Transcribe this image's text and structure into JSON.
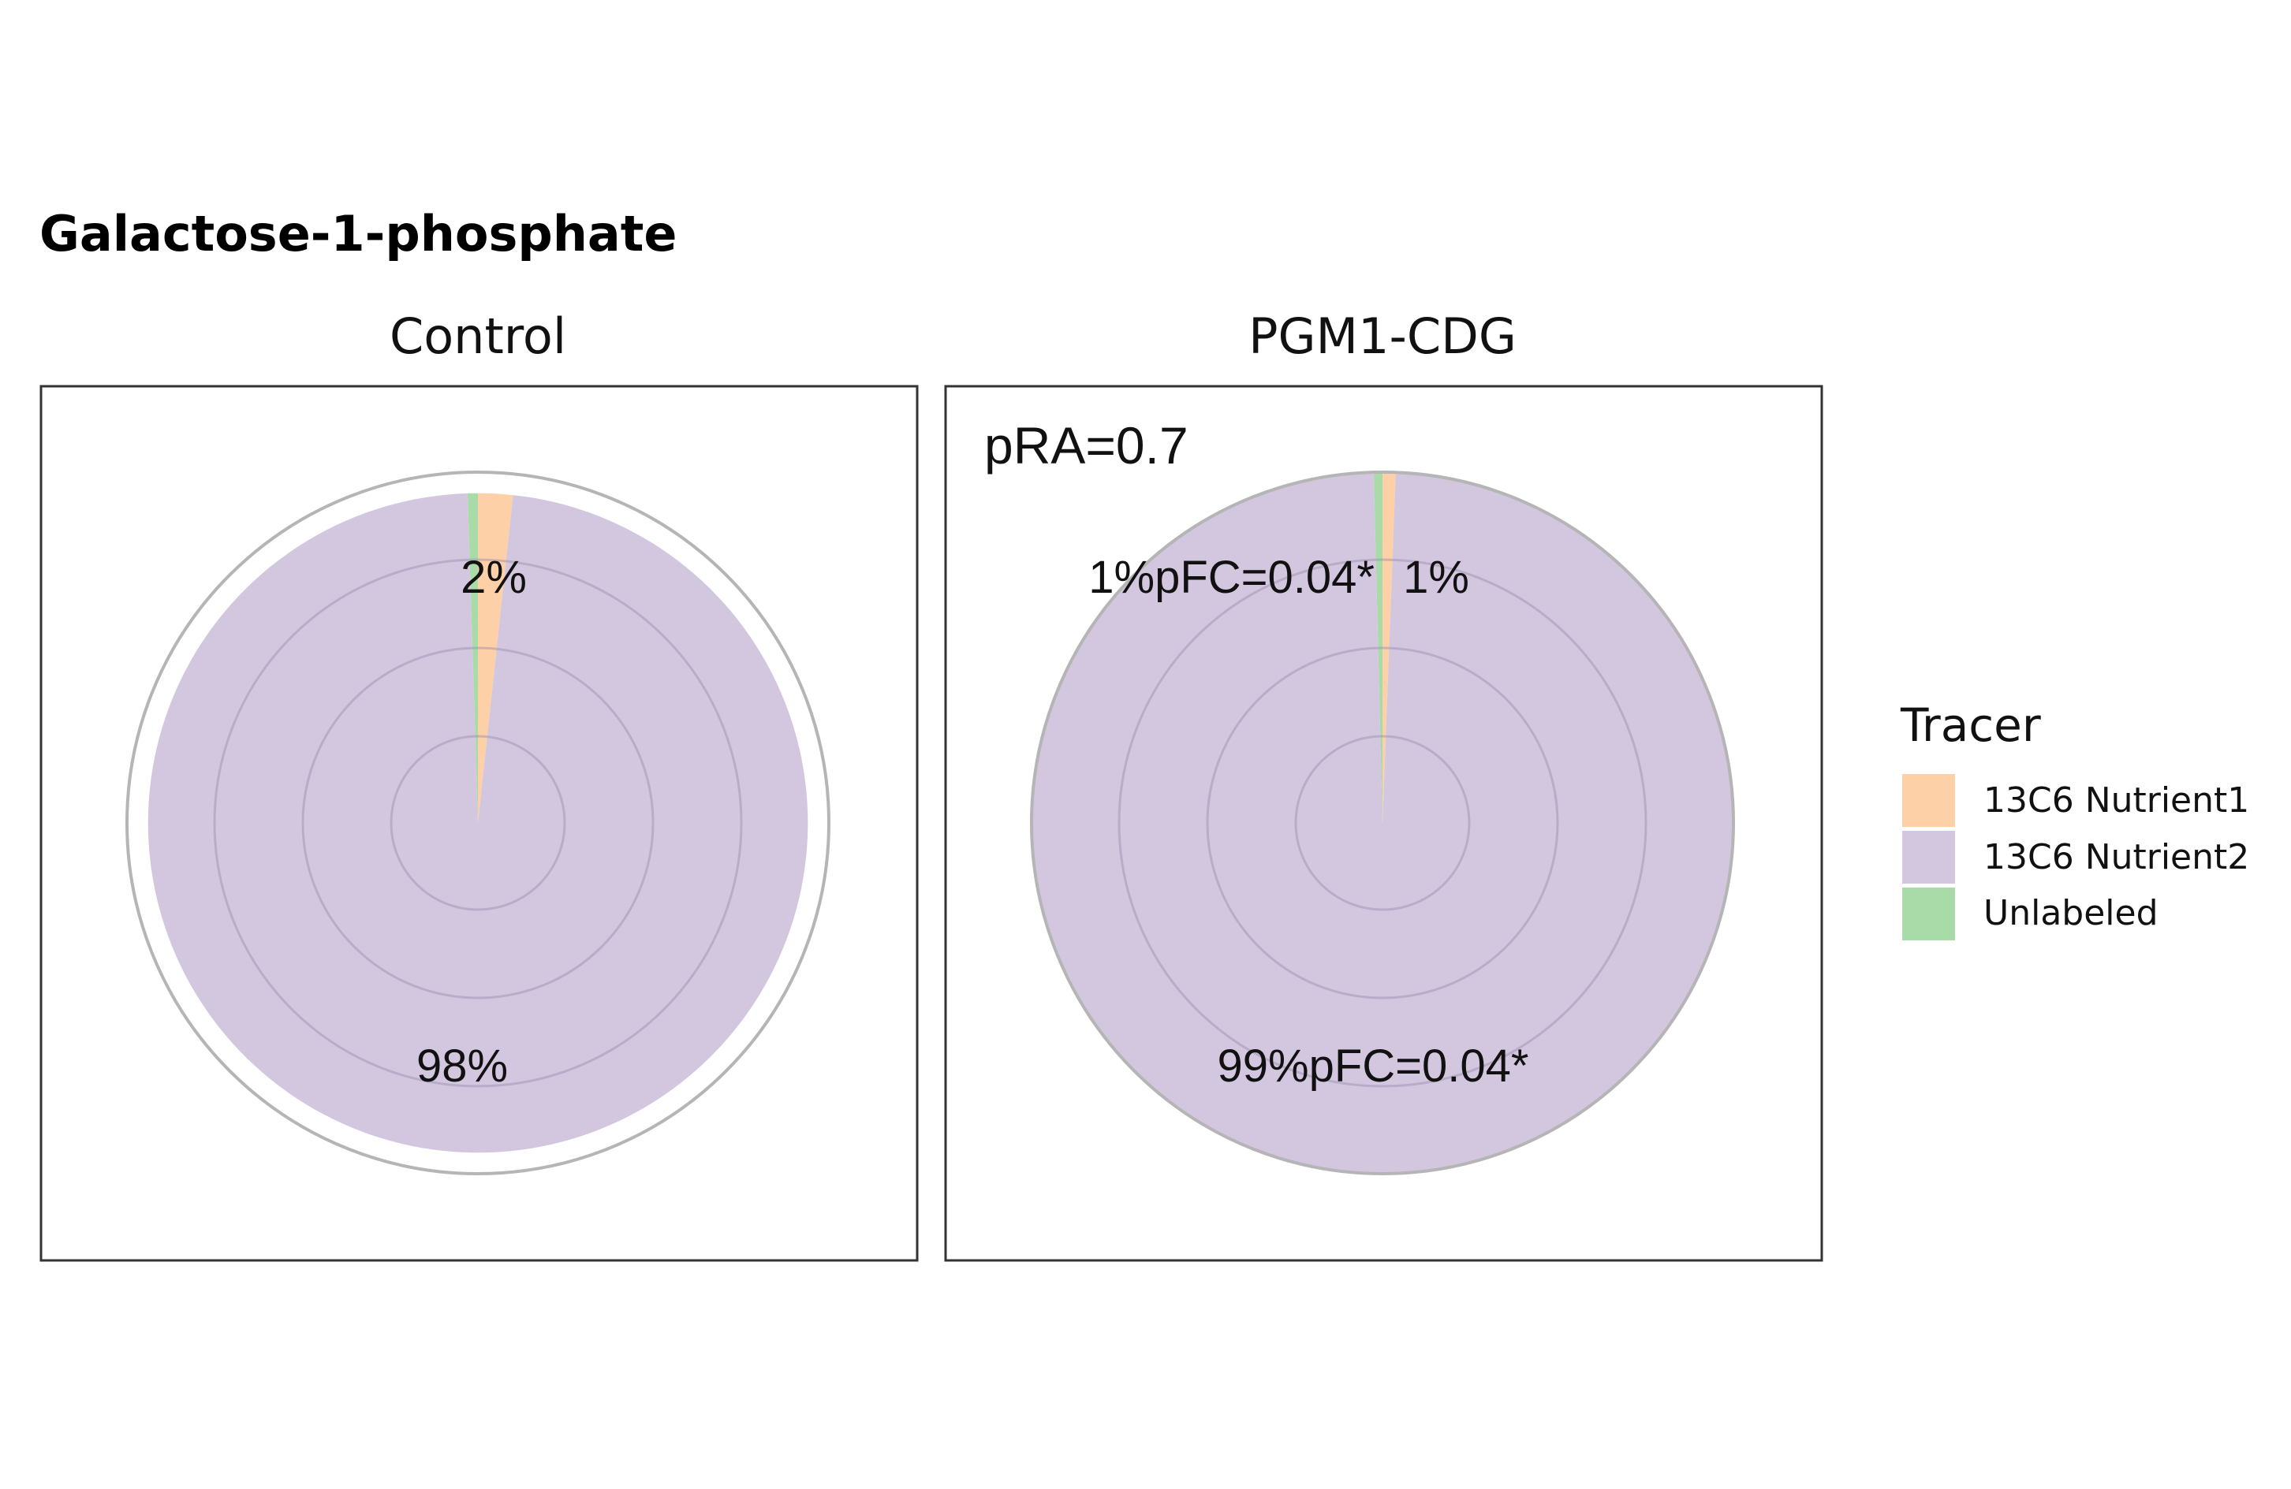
{
  "chart_data": {
    "type": "pie",
    "title": "Galactose-1-phosphate",
    "legend": {
      "title": "Tracer",
      "placement": "right",
      "items": [
        {
          "label": "13C6 Nutrient1",
          "color": "#fdd0a8"
        },
        {
          "label": "13C6 Nutrient2",
          "color": "#d3c7e0"
        },
        {
          "label": "Unlabeled",
          "color": "#a9dba9"
        }
      ]
    },
    "panels": [
      {
        "title": "Control",
        "annotation": "",
        "total_fraction": 0.94,
        "slices": [
          {
            "tracer": "13C6 Nutrient1",
            "value": 0.017
          },
          {
            "tracer": "13C6 Nutrient2",
            "value": 0.978
          },
          {
            "tracer": "Unlabeled",
            "value": 0.005
          }
        ],
        "labels": [
          {
            "text": "2%",
            "slice": "13C6 Nutrient1"
          },
          {
            "text": "98%",
            "slice": "13C6 Nutrient2"
          }
        ]
      },
      {
        "title": "PGM1-CDG",
        "annotation": "pRA=0.7",
        "total_fraction": 1.0,
        "slices": [
          {
            "tracer": "13C6 Nutrient1",
            "value": 0.006
          },
          {
            "tracer": "13C6 Nutrient2",
            "value": 0.99
          },
          {
            "tracer": "Unlabeled",
            "value": 0.004
          }
        ],
        "labels": [
          {
            "text": "1%pFC=0.04*",
            "slice": "Unlabeled"
          },
          {
            "text": "1%",
            "slice": "13C6 Nutrient1"
          },
          {
            "text": "99%pFC=0.04*",
            "slice": "13C6 Nutrient2"
          }
        ]
      }
    ]
  }
}
